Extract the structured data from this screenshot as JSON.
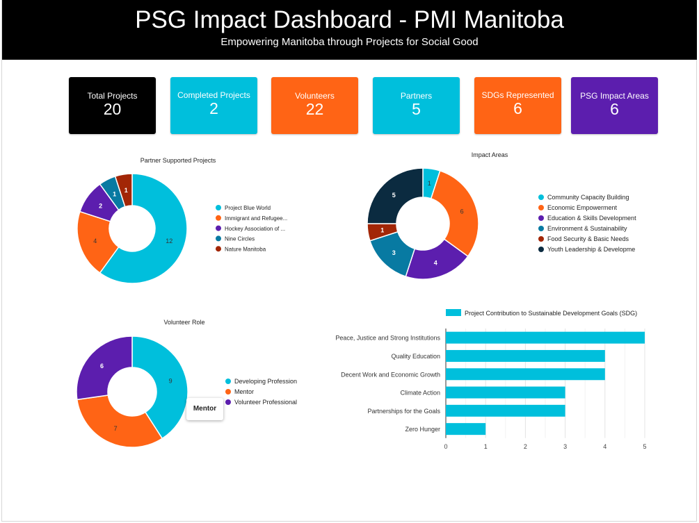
{
  "header": {
    "title": "PSG Impact Dashboard - PMI Manitoba",
    "subtitle": "Empowering Manitoba through Projects for Social Good"
  },
  "kpis": [
    {
      "label": "Total Projects",
      "value": "20",
      "color": "#000000"
    },
    {
      "label": "Completed Projects",
      "value": "2",
      "color": "#00bfdc"
    },
    {
      "label": "Volunteers",
      "value": "22",
      "color": "#ff6415"
    },
    {
      "label": "Partners",
      "value": "5",
      "color": "#00bfdc"
    },
    {
      "label": "SDGs Represented",
      "value": "6",
      "color": "#ff6415"
    },
    {
      "label": "PSG Impact Areas",
      "value": "6",
      "color": "#5c1eae"
    }
  ],
  "tooltip": {
    "text": "Mentor"
  },
  "chart_data": [
    {
      "type": "pie",
      "donut": true,
      "title": "Partner Supported Projects",
      "labels": [
        "Project Blue World",
        "Immigrant and Refugee...",
        "Hockey Association of ...",
        "Nine Circles",
        "Nature Manitoba"
      ],
      "values": [
        12,
        4,
        2,
        1,
        1
      ],
      "colors": [
        "#00bfdc",
        "#ff6415",
        "#5c1eae",
        "#087aa2",
        "#a22606"
      ],
      "legend": "right"
    },
    {
      "type": "pie",
      "donut": true,
      "title": "Impact Areas",
      "labels": [
        "Community Capacity Building",
        "Economic Empowerment",
        "Education & Skills Development",
        "Environment & Sustainability",
        "Food Security & Basic Needs",
        "Youth Leadership & Developme"
      ],
      "values": [
        1,
        6,
        4,
        3,
        1,
        5
      ],
      "colors": [
        "#00bfdc",
        "#ff6415",
        "#5c1eae",
        "#087aa2",
        "#a22606",
        "#0b2b40"
      ],
      "legend": "right"
    },
    {
      "type": "pie",
      "donut": true,
      "title": "Volunteer Role",
      "labels": [
        "Developing Profession",
        "Mentor",
        "Volunteer Professional"
      ],
      "values": [
        9,
        7,
        6
      ],
      "colors": [
        "#00bfdc",
        "#ff6415",
        "#5c1eae"
      ],
      "legend": "right"
    },
    {
      "type": "bar",
      "orientation": "horizontal",
      "title": "",
      "series": [
        {
          "name": "Project Contribution to Sustainable Development Goals (SDG)",
          "values": [
            5,
            4,
            4,
            3,
            3,
            1
          ],
          "color": "#00bfdc"
        }
      ],
      "categories": [
        "Peace, Justice and Strong Institutions",
        "Quality Education",
        "Decent Work and Economic Growth",
        "Climate Action",
        "Partnerships for the Goals",
        "Zero Hunger"
      ],
      "xlim": [
        0,
        5
      ],
      "xticks": [
        "0",
        "1",
        "2",
        "3",
        "4",
        "5"
      ],
      "grid": true,
      "legend": "top"
    }
  ]
}
